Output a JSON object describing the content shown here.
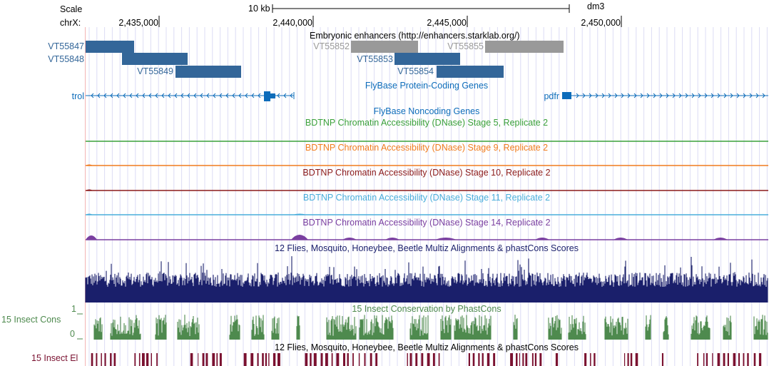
{
  "ruler": {
    "scale_label": "Scale",
    "scale_bar_label": "10 kb",
    "assembly": "dm3",
    "chrom_label": "chrX:",
    "ticks": [
      "2,435,000",
      "2,440,000",
      "2,445,000",
      "2,450,000"
    ]
  },
  "enhancers": {
    "title": "Embryonic enhancers (http://enhancers.starklab.org/)",
    "items": [
      {
        "name": "VT55847",
        "color": "#336699"
      },
      {
        "name": "VT55848",
        "color": "#336699"
      },
      {
        "name": "VT55849",
        "color": "#336699"
      },
      {
        "name": "VT55852",
        "color": "#999999"
      },
      {
        "name": "VT55853",
        "color": "#336699"
      },
      {
        "name": "VT55854",
        "color": "#336699"
      },
      {
        "name": "VT55855",
        "color": "#999999"
      }
    ]
  },
  "genes": {
    "protein_title": "FlyBase Protein-Coding Genes",
    "noncoding_title": "FlyBase Noncoding Genes",
    "left_gene": "trol",
    "right_gene": "pdfr",
    "color": "#0d6cba"
  },
  "dnase": [
    {
      "title": "BDTNP Chromatin Accessibility (DNase) Stage 5, Replicate 2",
      "color": "#3aa03a"
    },
    {
      "title": "BDTNP Chromatin Accessibility (DNase) Stage 9, Replicate 2",
      "color": "#f07c1e"
    },
    {
      "title": "BDTNP Chromatin Accessibility (DNase) Stage 10, Replicate 2",
      "color": "#8b1a1a"
    },
    {
      "title": "BDTNP Chromatin Accessibility (DNase) Stage 11, Replicate 2",
      "color": "#4aaedb"
    },
    {
      "title": "BDTNP Chromatin Accessibility (DNase) Stage 14, Replicate 2",
      "color": "#7a3fa0"
    }
  ],
  "multiz": {
    "title": "12 Flies, Mosquito, Honeybee, Beetle Multiz Alignments & phastCons Scores",
    "color": "#1a1f6b"
  },
  "cons": {
    "title": "15 Insect Conservation by PhastCons",
    "side_label": "15 Insect Cons",
    "axis_max": "1",
    "axis_min": "0",
    "color": "#4e8a4e"
  },
  "elements": {
    "title": "12 Flies, Mosquito, Honeybee, Beetle Multiz Alignments & phastCons Scores",
    "side_label": "15 Insect El",
    "color": "#7a1130"
  }
}
